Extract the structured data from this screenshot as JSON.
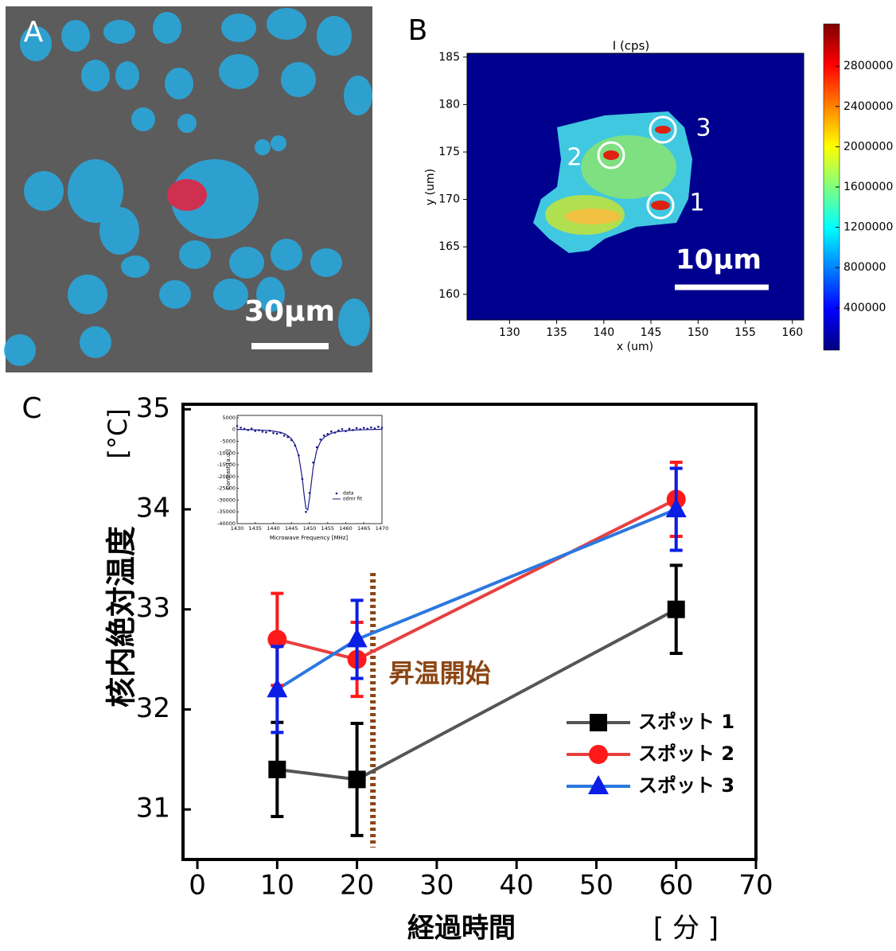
{
  "panel_a": {
    "label": "A",
    "scale_bar": "30μm"
  },
  "chart_data": [
    {
      "type": "heatmap",
      "label": "B",
      "title": "I (cps)",
      "x_label": "x (um)",
      "y_label": "y (um)",
      "xlim": [
        125.5,
        161.2
      ],
      "xticks": [
        130,
        135,
        140,
        145,
        150,
        155,
        160
      ],
      "ylim": [
        157.3,
        185.4
      ],
      "yticks": [
        160,
        165,
        170,
        175,
        180,
        185
      ],
      "clim": [
        -20000,
        3220000
      ],
      "cticks": [
        400000,
        800000,
        1200000,
        1600000,
        2000000,
        2400000,
        2800000
      ],
      "colormap": "jet",
      "annotations": [
        "1",
        "2",
        "3"
      ],
      "scale_bar": "10μm"
    },
    {
      "type": "line",
      "label": "C",
      "x_label": "経過時間",
      "x_unit": "[ 分 ]",
      "y_label": "核内絶対温度",
      "y_unit": "[°C]",
      "x": [
        10,
        20,
        60
      ],
      "series": [
        {
          "name": "スポット 1",
          "color": "#000000",
          "line_color": "#555555",
          "marker": "square",
          "values": [
            31.4,
            31.3,
            33.0
          ],
          "errors": [
            0.47,
            0.56,
            0.44
          ]
        },
        {
          "name": "スポット 2",
          "color": "#ff1a1a",
          "line_color": "#e84040",
          "marker": "circle",
          "values": [
            32.7,
            32.5,
            34.1
          ],
          "errors": [
            0.46,
            0.37,
            0.37
          ]
        },
        {
          "name": "スポット 3",
          "color": "#0a1ee6",
          "line_color": "#2b78e0",
          "marker": "triangle",
          "values": [
            32.2,
            32.7,
            34.0
          ],
          "errors": [
            0.43,
            0.39,
            0.41
          ]
        }
      ],
      "xlim": [
        -1.8,
        70
      ],
      "xticks": [
        0,
        10,
        20,
        30,
        40,
        50,
        60,
        70
      ],
      "ylim": [
        30.5,
        35.05
      ],
      "yticks": [
        31,
        32,
        33,
        34,
        35
      ],
      "vline": {
        "x": 22,
        "label": "昇温開始",
        "color": "#8b4513"
      },
      "legend": "lower right"
    },
    {
      "type": "scatter",
      "x_label": "Microwave Frequency [MHz]",
      "y_label": "Contrast [a.u.]",
      "xlim": [
        1430,
        1470
      ],
      "xticks": [
        1430,
        1435,
        1440,
        1445,
        1450,
        1455,
        1460,
        1465,
        1470
      ],
      "ylim": [
        -40000,
        6000
      ],
      "yticks": [
        5000,
        0,
        -5000,
        -10000,
        -15000,
        -20000,
        -25000,
        -30000,
        -35000,
        -40000
      ],
      "series": [
        {
          "name": "data",
          "color": "#1a1a8c",
          "mode": "markers",
          "x": [
            1430,
            1431,
            1432,
            1433,
            1434,
            1435,
            1436,
            1437,
            1438,
            1439,
            1440,
            1441,
            1442,
            1443,
            1444,
            1445,
            1446,
            1447,
            1448,
            1449,
            1450,
            1451,
            1452,
            1453,
            1454,
            1455,
            1456,
            1457,
            1458,
            1459,
            1460,
            1461,
            1462,
            1463,
            1464,
            1465,
            1466,
            1467,
            1468,
            1469,
            1470
          ],
          "values": [
            1500,
            800,
            300,
            -200,
            400,
            -600,
            -300,
            -900,
            -1200,
            -500,
            -1500,
            -1800,
            -1400,
            -2600,
            -3200,
            -4500,
            -6800,
            -11000,
            -21000,
            -35000,
            -27000,
            -14000,
            -7500,
            -4200,
            -2500,
            -1900,
            -800,
            -1300,
            -400,
            200,
            -700,
            300,
            -200,
            600,
            100,
            700,
            300,
            900,
            500,
            1200,
            800
          ]
        },
        {
          "name": "odmr fit",
          "color": "#1a1a8c",
          "mode": "line",
          "x": [
            1430,
            1432,
            1434,
            1436,
            1438,
            1440,
            1442,
            1443,
            1444,
            1445,
            1446,
            1447,
            1448,
            1448.5,
            1449,
            1449.5,
            1450,
            1451,
            1452,
            1453,
            1454,
            1456,
            1458,
            1460,
            1462,
            1464,
            1466,
            1468,
            1470
          ],
          "values": [
            60,
            0,
            -75,
            -190,
            -370,
            -680,
            -1235,
            -1700,
            -2620,
            -3960,
            -6370,
            -11100,
            -20800,
            -27700,
            -33500,
            -34150,
            -29100,
            -16100,
            -8790,
            -5210,
            -3330,
            -1590,
            -840,
            -466,
            -247,
            -110,
            -18,
            46,
            93
          ]
        }
      ]
    }
  ]
}
